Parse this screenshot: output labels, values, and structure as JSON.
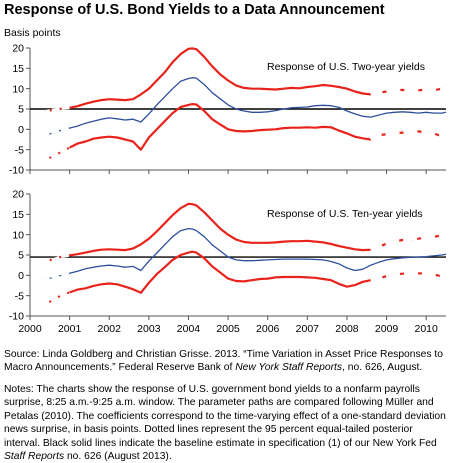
{
  "title": "Response of U.S. Bond Yields to a Data Announcement",
  "y_unit_label": "Basis points",
  "source": {
    "prefix": "Source: Linda Goldberg and Christian Grisse. 2013. “Time Variation in Asset Price Responses to Macro Announcements.” Federal Reserve Bank of ",
    "italic": "New York Staff Reports",
    "suffix": ", no. 626, August."
  },
  "notes": {
    "prefix": "Notes: The charts show the response of U.S. government bond yields to a nonfarm payrolls surprise, 8:25 a.m.-9:25 a.m. window. The parameter paths are compared following Müller and Petalas (2010). The coefficients correspond to the time-varying effect of a one-standard deviation news surprise, in basis points. Dotted lines represent the 95 percent equal-tailed posterior interval. Black solid lines indicate the baseline estimate in specification (1) of our New York Fed ",
    "italic": "Staff Reports",
    "suffix": " no. 626 (August 2013)."
  },
  "colors": {
    "estimate": "#2e4f9e",
    "band": "#e8231b",
    "baseline": "#000000",
    "axis": "#555555"
  },
  "chart_data": [
    {
      "type": "line",
      "title": "Response of U.S. Two-year yields",
      "ylabel": "Basis points",
      "ylim": [
        -10,
        20
      ],
      "yticks": [
        -10,
        -5,
        0,
        5,
        10,
        15,
        20
      ],
      "xlim": [
        2000.0,
        2010.5
      ],
      "xticks": [
        2000,
        2001,
        2002,
        2003,
        2004,
        2005,
        2006,
        2007,
        2008,
        2009,
        2010
      ],
      "baseline": 5,
      "series": [
        {
          "role": "upper",
          "x": [
            2000.4,
            2000.6,
            2000.8,
            2001.0,
            2001.2,
            2001.4,
            2001.6,
            2001.8,
            2002.0,
            2002.2,
            2002.4,
            2002.6,
            2002.8,
            2003.0,
            2003.2,
            2003.4,
            2003.6,
            2003.8,
            2004.0,
            2004.1,
            2004.2,
            2004.4,
            2004.6,
            2004.8,
            2005.0,
            2005.2,
            2005.4,
            2005.6,
            2005.8,
            2006.0,
            2006.2,
            2006.4,
            2006.6,
            2006.8,
            2007.0,
            2007.2,
            2007.4,
            2007.6,
            2007.8,
            2008.0,
            2008.2,
            2008.4,
            2008.6,
            2008.8,
            2009.0,
            2009.2,
            2009.4,
            2009.6,
            2009.8,
            2010.0,
            2010.2,
            2010.4,
            2010.5
          ],
          "y": [
            4.5,
            4.8,
            5.1,
            5.3,
            5.7,
            6.3,
            6.8,
            7.2,
            7.4,
            7.3,
            7.2,
            7.4,
            8.6,
            10.0,
            12.0,
            14.0,
            16.5,
            18.5,
            19.8,
            19.9,
            19.7,
            17.8,
            15.5,
            13.5,
            12.0,
            10.8,
            10.2,
            10.0,
            10.0,
            9.9,
            9.8,
            10.0,
            10.2,
            10.1,
            10.4,
            10.6,
            10.9,
            10.7,
            10.4,
            10.0,
            9.3,
            8.8,
            8.6,
            9.0,
            9.3,
            9.6,
            9.7,
            9.5,
            9.6,
            9.8,
            9.6,
            10.0,
            11.0
          ]
        },
        {
          "role": "estimate",
          "x": [
            2000.4,
            2000.6,
            2000.8,
            2001.0,
            2001.2,
            2001.4,
            2001.6,
            2001.8,
            2002.0,
            2002.2,
            2002.4,
            2002.6,
            2002.8,
            2003.0,
            2003.2,
            2003.4,
            2003.6,
            2003.8,
            2004.0,
            2004.1,
            2004.2,
            2004.4,
            2004.6,
            2004.8,
            2005.0,
            2005.2,
            2005.4,
            2005.6,
            2005.8,
            2006.0,
            2006.2,
            2006.4,
            2006.6,
            2006.8,
            2007.0,
            2007.2,
            2007.4,
            2007.6,
            2007.8,
            2008.0,
            2008.2,
            2008.4,
            2008.6,
            2008.8,
            2009.0,
            2009.2,
            2009.4,
            2009.6,
            2009.8,
            2010.0,
            2010.2,
            2010.4,
            2010.5
          ],
          "y": [
            -1.5,
            -0.8,
            -0.2,
            0.3,
            0.8,
            1.5,
            2.0,
            2.5,
            2.8,
            2.6,
            2.3,
            2.5,
            1.8,
            3.8,
            6.0,
            8.0,
            10.0,
            11.8,
            12.5,
            12.7,
            12.6,
            11.0,
            9.0,
            7.5,
            6.0,
            5.0,
            4.5,
            4.2,
            4.2,
            4.3,
            4.6,
            5.0,
            5.3,
            5.4,
            5.5,
            5.8,
            5.9,
            5.8,
            5.4,
            4.5,
            3.8,
            3.2,
            3.0,
            3.5,
            4.0,
            4.2,
            4.3,
            4.2,
            4.0,
            4.2,
            4.0,
            4.0,
            4.2
          ]
        },
        {
          "role": "lower",
          "x": [
            2000.4,
            2000.6,
            2000.8,
            2001.0,
            2001.2,
            2001.4,
            2001.6,
            2001.8,
            2002.0,
            2002.2,
            2002.4,
            2002.6,
            2002.8,
            2003.0,
            2003.2,
            2003.4,
            2003.6,
            2003.8,
            2004.0,
            2004.1,
            2004.2,
            2004.4,
            2004.6,
            2004.8,
            2005.0,
            2005.2,
            2005.4,
            2005.6,
            2005.8,
            2006.0,
            2006.2,
            2006.4,
            2006.6,
            2006.8,
            2007.0,
            2007.2,
            2007.4,
            2007.6,
            2007.8,
            2008.0,
            2008.2,
            2008.4,
            2008.6,
            2008.8,
            2009.0,
            2009.2,
            2009.4,
            2009.6,
            2009.8,
            2010.0,
            2010.2,
            2010.4,
            2010.5
          ],
          "y": [
            -7.5,
            -6.5,
            -5.5,
            -4.5,
            -3.5,
            -3.0,
            -2.3,
            -2.0,
            -1.8,
            -2.0,
            -2.5,
            -3.0,
            -5.0,
            -2.0,
            0.0,
            2.0,
            4.0,
            5.5,
            6.0,
            6.2,
            6.1,
            4.5,
            2.5,
            1.2,
            0.0,
            -0.4,
            -0.5,
            -0.4,
            -0.2,
            -0.1,
            0.0,
            0.3,
            0.4,
            0.4,
            0.5,
            0.4,
            0.6,
            0.5,
            -0.3,
            -1.0,
            -1.8,
            -2.2,
            -2.5,
            -1.5,
            -1.2,
            -1.0,
            -0.8,
            -0.7,
            -0.5,
            -0.8,
            -1.0,
            -1.8,
            -2.5
          ]
        }
      ]
    },
    {
      "type": "line",
      "title": "Response of U.S. Ten-year yields",
      "ylabel": "Basis points",
      "ylim": [
        -10,
        20
      ],
      "yticks": [
        -10,
        -5,
        0,
        5,
        10,
        15,
        20
      ],
      "xlim": [
        2000.0,
        2010.5
      ],
      "xticks": [
        2000,
        2001,
        2002,
        2003,
        2004,
        2005,
        2006,
        2007,
        2008,
        2009,
        2010
      ],
      "baseline": 4.5,
      "series": [
        {
          "role": "upper",
          "x": [
            2000.4,
            2000.6,
            2000.8,
            2001.0,
            2001.2,
            2001.4,
            2001.6,
            2001.8,
            2002.0,
            2002.2,
            2002.4,
            2002.6,
            2002.8,
            2003.0,
            2003.2,
            2003.4,
            2003.6,
            2003.8,
            2004.0,
            2004.1,
            2004.2,
            2004.4,
            2004.6,
            2004.8,
            2005.0,
            2005.2,
            2005.4,
            2005.6,
            2005.8,
            2006.0,
            2006.2,
            2006.4,
            2006.6,
            2006.8,
            2007.0,
            2007.2,
            2007.4,
            2007.6,
            2007.8,
            2008.0,
            2008.2,
            2008.4,
            2008.6,
            2008.8,
            2009.0,
            2009.2,
            2009.4,
            2009.6,
            2009.8,
            2010.0,
            2010.2,
            2010.4,
            2010.5
          ],
          "y": [
            3.5,
            4.0,
            4.6,
            4.9,
            5.2,
            5.6,
            6.0,
            6.3,
            6.4,
            6.3,
            6.2,
            6.6,
            7.6,
            9.0,
            10.8,
            12.8,
            14.8,
            16.5,
            17.6,
            17.5,
            17.2,
            15.5,
            13.5,
            11.5,
            10.0,
            8.8,
            8.2,
            8.0,
            8.0,
            8.0,
            8.1,
            8.3,
            8.4,
            8.4,
            8.5,
            8.3,
            8.1,
            7.7,
            7.2,
            6.8,
            6.4,
            6.2,
            6.3,
            7.0,
            7.8,
            8.3,
            8.7,
            8.9,
            9.0,
            9.3,
            9.5,
            9.8,
            10.4
          ]
        },
        {
          "role": "estimate",
          "x": [
            2000.4,
            2000.6,
            2000.8,
            2001.0,
            2001.2,
            2001.4,
            2001.6,
            2001.8,
            2002.0,
            2002.2,
            2002.4,
            2002.6,
            2002.8,
            2003.0,
            2003.2,
            2003.4,
            2003.6,
            2003.8,
            2004.0,
            2004.1,
            2004.2,
            2004.4,
            2004.6,
            2004.8,
            2005.0,
            2005.2,
            2005.4,
            2005.6,
            2005.8,
            2006.0,
            2006.2,
            2006.4,
            2006.6,
            2006.8,
            2007.0,
            2007.2,
            2007.4,
            2007.6,
            2007.8,
            2008.0,
            2008.2,
            2008.4,
            2008.6,
            2008.8,
            2009.0,
            2009.2,
            2009.4,
            2009.6,
            2009.8,
            2010.0,
            2010.2,
            2010.4,
            2010.5
          ],
          "y": [
            -1.0,
            -0.5,
            0.0,
            0.5,
            1.0,
            1.6,
            2.0,
            2.3,
            2.5,
            2.3,
            2.0,
            2.2,
            1.2,
            3.5,
            5.5,
            7.5,
            9.5,
            11.0,
            11.5,
            11.4,
            11.0,
            9.5,
            7.5,
            6.0,
            4.5,
            3.8,
            3.6,
            3.6,
            3.7,
            3.8,
            3.9,
            4.0,
            4.0,
            4.0,
            4.0,
            3.9,
            3.8,
            3.4,
            2.8,
            1.8,
            1.2,
            1.5,
            2.5,
            3.2,
            3.8,
            4.1,
            4.3,
            4.4,
            4.5,
            4.6,
            4.8,
            5.0,
            5.2
          ]
        },
        {
          "role": "lower",
          "x": [
            2000.4,
            2000.6,
            2000.8,
            2001.0,
            2001.2,
            2001.4,
            2001.6,
            2001.8,
            2002.0,
            2002.2,
            2002.4,
            2002.6,
            2002.8,
            2003.0,
            2003.2,
            2003.4,
            2003.6,
            2003.8,
            2004.0,
            2004.1,
            2004.2,
            2004.4,
            2004.6,
            2004.8,
            2005.0,
            2005.2,
            2005.4,
            2005.6,
            2005.8,
            2006.0,
            2006.2,
            2006.4,
            2006.6,
            2006.8,
            2007.0,
            2007.2,
            2007.4,
            2007.6,
            2007.8,
            2008.0,
            2008.2,
            2008.4,
            2008.6,
            2008.8,
            2009.0,
            2009.2,
            2009.4,
            2009.6,
            2009.8,
            2010.0,
            2010.2,
            2010.4,
            2010.5
          ],
          "y": [
            -7.0,
            -6.0,
            -4.8,
            -4.2,
            -3.5,
            -3.2,
            -2.6,
            -2.2,
            -2.0,
            -2.2,
            -2.8,
            -3.4,
            -4.3,
            -1.8,
            0.3,
            2.0,
            3.8,
            5.0,
            5.6,
            5.8,
            5.6,
            4.2,
            2.2,
            0.7,
            -0.8,
            -1.4,
            -1.5,
            -1.2,
            -0.9,
            -0.8,
            -0.5,
            -0.4,
            -0.4,
            -0.4,
            -0.5,
            -0.6,
            -0.9,
            -1.2,
            -2.1,
            -2.8,
            -2.4,
            -1.6,
            -1.2,
            -0.8,
            -0.2,
            0.2,
            0.4,
            0.5,
            0.5,
            0.4,
            0.2,
            -0.3,
            -1.0
          ]
        }
      ]
    }
  ]
}
